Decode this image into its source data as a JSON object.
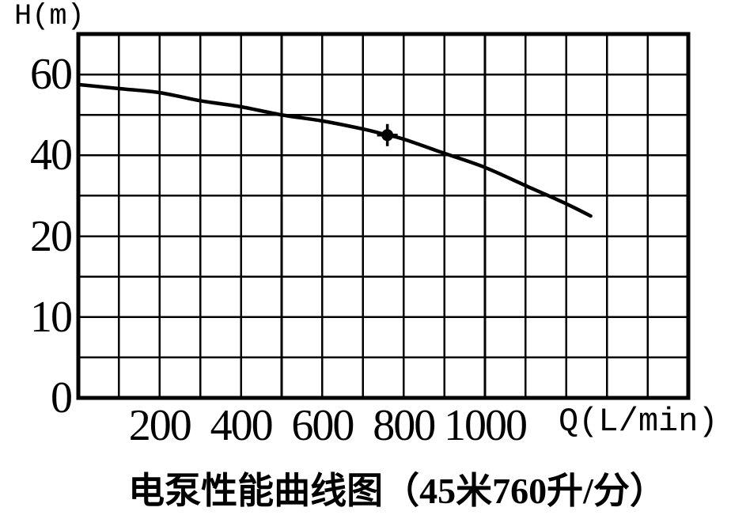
{
  "colors": {
    "ink": "#000000",
    "paper": "#ffffff"
  },
  "chart_data": {
    "type": "line",
    "title": "电泵性能曲线图（45米760升/分）",
    "y_axis_label": "H(m)",
    "x_axis_label": "Q(L/min)",
    "grid": true,
    "axis_ranges": {
      "x": [
        0,
        1500
      ],
      "y_displayed": [
        0,
        70
      ]
    },
    "x_unit_per_cell": 100,
    "y_gridline_values": [
      0,
      5,
      10,
      15,
      20,
      30,
      40,
      50,
      60,
      70
    ],
    "y_scale_note": "non-linear axis: each grid row = 5 m below 20 m, 10 m above 20 m",
    "y_ticks": [
      {
        "value": 60,
        "label": "60"
      },
      {
        "value": 40,
        "label": "40"
      },
      {
        "value": 20,
        "label": "20"
      },
      {
        "value": 10,
        "label": "10"
      },
      {
        "value": 0,
        "label": "0"
      }
    ],
    "x_ticks": [
      {
        "value": 200,
        "label": "200"
      },
      {
        "value": 400,
        "label": "400"
      },
      {
        "value": 600,
        "label": "600"
      },
      {
        "value": 800,
        "label": "800"
      },
      {
        "value": 1000,
        "label": "1000"
      }
    ],
    "series": [
      {
        "name": "curve",
        "points": [
          [
            0,
            57.5
          ],
          [
            100,
            56.5
          ],
          [
            200,
            55.5
          ],
          [
            300,
            53.5
          ],
          [
            400,
            52
          ],
          [
            500,
            50
          ],
          [
            600,
            48.5
          ],
          [
            700,
            46.5
          ],
          [
            760,
            45
          ],
          [
            800,
            44
          ],
          [
            900,
            40.5
          ],
          [
            1000,
            37
          ],
          [
            1100,
            32.5
          ],
          [
            1200,
            28
          ],
          [
            1260,
            25
          ]
        ]
      }
    ],
    "marked_point": {
      "q": 760,
      "h": 45
    }
  }
}
